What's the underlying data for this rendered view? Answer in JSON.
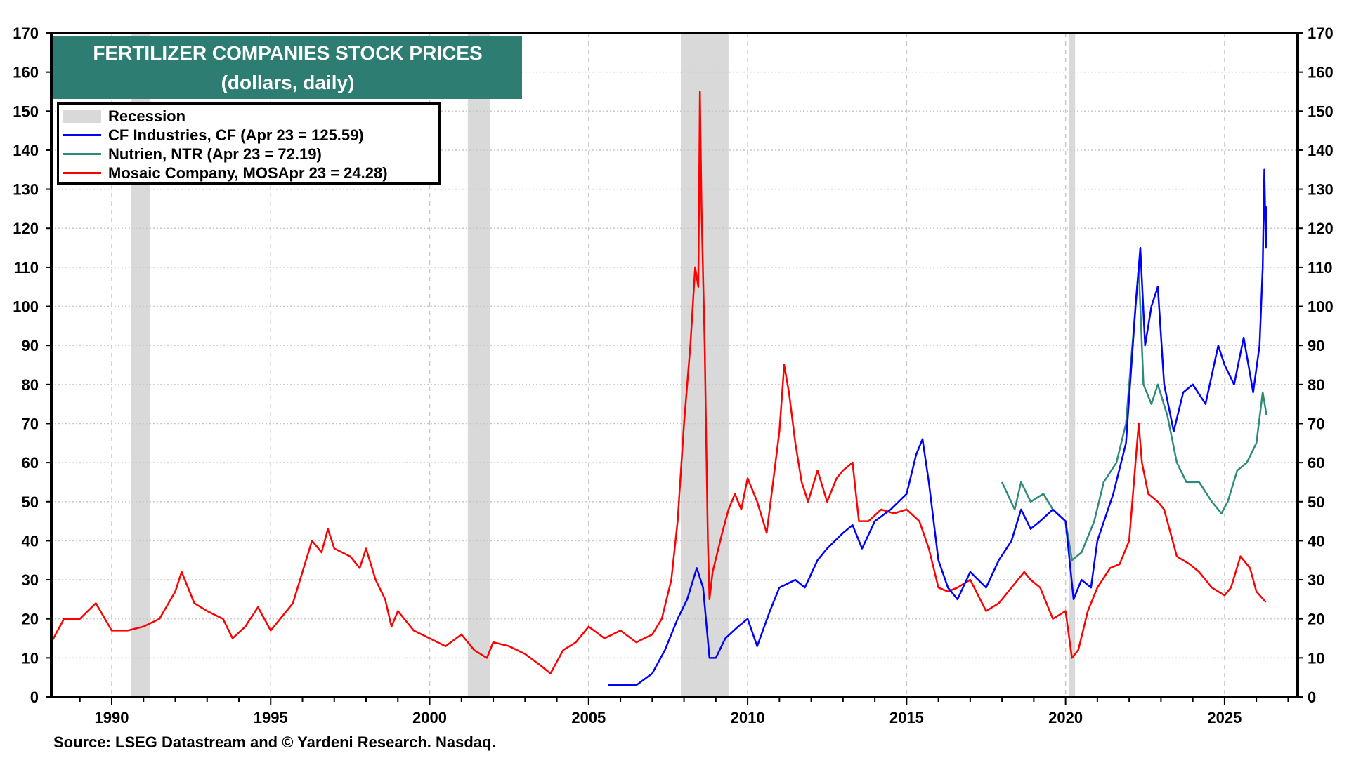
{
  "chart_data": {
    "type": "line",
    "title": "FERTILIZER COMPANIES STOCK PRICES",
    "subtitle": "(dollars, daily)",
    "source": "Source: LSEG Datastream and © Yardeni Research. Nasdaq.",
    "xlim": [
      1988.1,
      2027.3
    ],
    "ylim": [
      0,
      170
    ],
    "x_ticks": [
      1990,
      1995,
      2000,
      2005,
      2010,
      2015,
      2020,
      2025
    ],
    "y_ticks": [
      0,
      10,
      20,
      30,
      40,
      50,
      60,
      70,
      80,
      90,
      100,
      110,
      120,
      130,
      140,
      150,
      160,
      170
    ],
    "grid": true,
    "legend_position": "top-left",
    "recession": {
      "label": "Recession",
      "color": "#d9d9d9",
      "periods": [
        [
          1990.6,
          1991.2
        ],
        [
          2001.2,
          2001.9
        ],
        [
          2007.9,
          2009.4
        ],
        [
          2020.1,
          2020.3
        ]
      ]
    },
    "series": [
      {
        "name": "CF Industries, CF (Apr 23 = 125.59)",
        "color": "#0000ff",
        "points": [
          [
            2005.6,
            3
          ],
          [
            2006.0,
            3
          ],
          [
            2006.5,
            3
          ],
          [
            2007.0,
            6
          ],
          [
            2007.4,
            12
          ],
          [
            2007.8,
            20
          ],
          [
            2008.1,
            25
          ],
          [
            2008.4,
            33
          ],
          [
            2008.6,
            28
          ],
          [
            2008.8,
            10
          ],
          [
            2009.0,
            10
          ],
          [
            2009.3,
            15
          ],
          [
            2009.7,
            18
          ],
          [
            2010.0,
            20
          ],
          [
            2010.3,
            13
          ],
          [
            2010.7,
            22
          ],
          [
            2011.0,
            28
          ],
          [
            2011.5,
            30
          ],
          [
            2011.8,
            28
          ],
          [
            2012.2,
            35
          ],
          [
            2012.5,
            38
          ],
          [
            2013.0,
            42
          ],
          [
            2013.3,
            44
          ],
          [
            2013.6,
            38
          ],
          [
            2014.0,
            45
          ],
          [
            2014.5,
            48
          ],
          [
            2015.0,
            52
          ],
          [
            2015.3,
            62
          ],
          [
            2015.5,
            66
          ],
          [
            2015.7,
            55
          ],
          [
            2016.0,
            35
          ],
          [
            2016.3,
            28
          ],
          [
            2016.6,
            25
          ],
          [
            2017.0,
            32
          ],
          [
            2017.5,
            28
          ],
          [
            2017.9,
            35
          ],
          [
            2018.3,
            40
          ],
          [
            2018.6,
            48
          ],
          [
            2018.9,
            43
          ],
          [
            2019.2,
            45
          ],
          [
            2019.6,
            48
          ],
          [
            2020.0,
            45
          ],
          [
            2020.25,
            25
          ],
          [
            2020.5,
            30
          ],
          [
            2020.8,
            28
          ],
          [
            2021.0,
            40
          ],
          [
            2021.5,
            52
          ],
          [
            2021.9,
            65
          ],
          [
            2022.2,
            100
          ],
          [
            2022.35,
            115
          ],
          [
            2022.5,
            90
          ],
          [
            2022.7,
            100
          ],
          [
            2022.9,
            105
          ],
          [
            2023.1,
            80
          ],
          [
            2023.4,
            68
          ],
          [
            2023.7,
            78
          ],
          [
            2024.0,
            80
          ],
          [
            2024.4,
            75
          ],
          [
            2024.8,
            90
          ],
          [
            2025.0,
            85
          ],
          [
            2025.3,
            80
          ],
          [
            2025.6,
            92
          ],
          [
            2025.9,
            78
          ],
          [
            2026.1,
            90
          ],
          [
            2026.2,
            110
          ],
          [
            2026.25,
            135
          ],
          [
            2026.3,
            115
          ],
          [
            2026.32,
            125.59
          ]
        ]
      },
      {
        "name": "Nutrien, NTR (Apr 23 = 72.19)",
        "color": "#2e8b7a",
        "points": [
          [
            2018.0,
            55
          ],
          [
            2018.4,
            48
          ],
          [
            2018.6,
            55
          ],
          [
            2018.9,
            50
          ],
          [
            2019.3,
            52
          ],
          [
            2019.6,
            48
          ],
          [
            2020.0,
            45
          ],
          [
            2020.2,
            35
          ],
          [
            2020.5,
            37
          ],
          [
            2020.9,
            45
          ],
          [
            2021.2,
            55
          ],
          [
            2021.6,
            60
          ],
          [
            2021.9,
            70
          ],
          [
            2022.2,
            100
          ],
          [
            2022.3,
            110
          ],
          [
            2022.45,
            80
          ],
          [
            2022.7,
            75
          ],
          [
            2022.9,
            80
          ],
          [
            2023.2,
            72
          ],
          [
            2023.5,
            60
          ],
          [
            2023.8,
            55
          ],
          [
            2024.2,
            55
          ],
          [
            2024.6,
            50
          ],
          [
            2024.9,
            47
          ],
          [
            2025.1,
            50
          ],
          [
            2025.4,
            58
          ],
          [
            2025.7,
            60
          ],
          [
            2026.0,
            65
          ],
          [
            2026.2,
            78
          ],
          [
            2026.32,
            72.19
          ]
        ]
      },
      {
        "name": "Mosaic Company, MOSApr 23 = 24.28)",
        "color": "#ff0000",
        "points": [
          [
            1988.1,
            14
          ],
          [
            1988.5,
            20
          ],
          [
            1989.0,
            20
          ],
          [
            1989.5,
            24
          ],
          [
            1990.0,
            17
          ],
          [
            1990.5,
            17
          ],
          [
            1991.0,
            18
          ],
          [
            1991.5,
            20
          ],
          [
            1992.0,
            27
          ],
          [
            1992.2,
            32
          ],
          [
            1992.6,
            24
          ],
          [
            1993.0,
            22
          ],
          [
            1993.5,
            20
          ],
          [
            1993.8,
            15
          ],
          [
            1994.2,
            18
          ],
          [
            1994.6,
            23
          ],
          [
            1995.0,
            17
          ],
          [
            1995.3,
            20
          ],
          [
            1995.7,
            24
          ],
          [
            1996.0,
            32
          ],
          [
            1996.3,
            40
          ],
          [
            1996.6,
            37
          ],
          [
            1996.8,
            43
          ],
          [
            1997.0,
            38
          ],
          [
            1997.5,
            36
          ],
          [
            1997.8,
            33
          ],
          [
            1998.0,
            38
          ],
          [
            1998.3,
            30
          ],
          [
            1998.6,
            25
          ],
          [
            1998.8,
            18
          ],
          [
            1999.0,
            22
          ],
          [
            1999.5,
            17
          ],
          [
            2000.0,
            15
          ],
          [
            2000.5,
            13
          ],
          [
            2001.0,
            16
          ],
          [
            2001.4,
            12
          ],
          [
            2001.8,
            10
          ],
          [
            2002.0,
            14
          ],
          [
            2002.5,
            13
          ],
          [
            2003.0,
            11
          ],
          [
            2003.5,
            8
          ],
          [
            2003.8,
            6
          ],
          [
            2004.2,
            12
          ],
          [
            2004.6,
            14
          ],
          [
            2005.0,
            18
          ],
          [
            2005.5,
            15
          ],
          [
            2006.0,
            17
          ],
          [
            2006.5,
            14
          ],
          [
            2007.0,
            16
          ],
          [
            2007.3,
            20
          ],
          [
            2007.6,
            30
          ],
          [
            2007.8,
            45
          ],
          [
            2008.0,
            70
          ],
          [
            2008.2,
            90
          ],
          [
            2008.35,
            110
          ],
          [
            2008.45,
            105
          ],
          [
            2008.5,
            155
          ],
          [
            2008.55,
            125
          ],
          [
            2008.65,
            90
          ],
          [
            2008.75,
            40
          ],
          [
            2008.8,
            25
          ],
          [
            2008.9,
            32
          ],
          [
            2009.2,
            42
          ],
          [
            2009.4,
            48
          ],
          [
            2009.6,
            52
          ],
          [
            2009.8,
            48
          ],
          [
            2010.0,
            56
          ],
          [
            2010.3,
            50
          ],
          [
            2010.6,
            42
          ],
          [
            2010.8,
            55
          ],
          [
            2011.0,
            68
          ],
          [
            2011.15,
            85
          ],
          [
            2011.3,
            78
          ],
          [
            2011.5,
            65
          ],
          [
            2011.7,
            55
          ],
          [
            2011.9,
            50
          ],
          [
            2012.2,
            58
          ],
          [
            2012.5,
            50
          ],
          [
            2012.8,
            56
          ],
          [
            2013.0,
            58
          ],
          [
            2013.3,
            60
          ],
          [
            2013.5,
            45
          ],
          [
            2013.8,
            45
          ],
          [
            2014.2,
            48
          ],
          [
            2014.6,
            47
          ],
          [
            2015.0,
            48
          ],
          [
            2015.4,
            45
          ],
          [
            2015.7,
            38
          ],
          [
            2016.0,
            28
          ],
          [
            2016.3,
            27
          ],
          [
            2016.6,
            28
          ],
          [
            2017.0,
            30
          ],
          [
            2017.5,
            22
          ],
          [
            2017.9,
            24
          ],
          [
            2018.3,
            28
          ],
          [
            2018.7,
            32
          ],
          [
            2018.9,
            30
          ],
          [
            2019.2,
            28
          ],
          [
            2019.6,
            20
          ],
          [
            2020.0,
            22
          ],
          [
            2020.2,
            10
          ],
          [
            2020.4,
            12
          ],
          [
            2020.7,
            22
          ],
          [
            2021.0,
            28
          ],
          [
            2021.4,
            33
          ],
          [
            2021.7,
            34
          ],
          [
            2022.0,
            40
          ],
          [
            2022.3,
            70
          ],
          [
            2022.4,
            60
          ],
          [
            2022.6,
            52
          ],
          [
            2022.9,
            50
          ],
          [
            2023.1,
            48
          ],
          [
            2023.5,
            36
          ],
          [
            2023.9,
            34
          ],
          [
            2024.2,
            32
          ],
          [
            2024.6,
            28
          ],
          [
            2025.0,
            26
          ],
          [
            2025.2,
            28
          ],
          [
            2025.5,
            36
          ],
          [
            2025.8,
            33
          ],
          [
            2026.0,
            27
          ],
          [
            2026.3,
            24.28
          ]
        ]
      }
    ]
  }
}
